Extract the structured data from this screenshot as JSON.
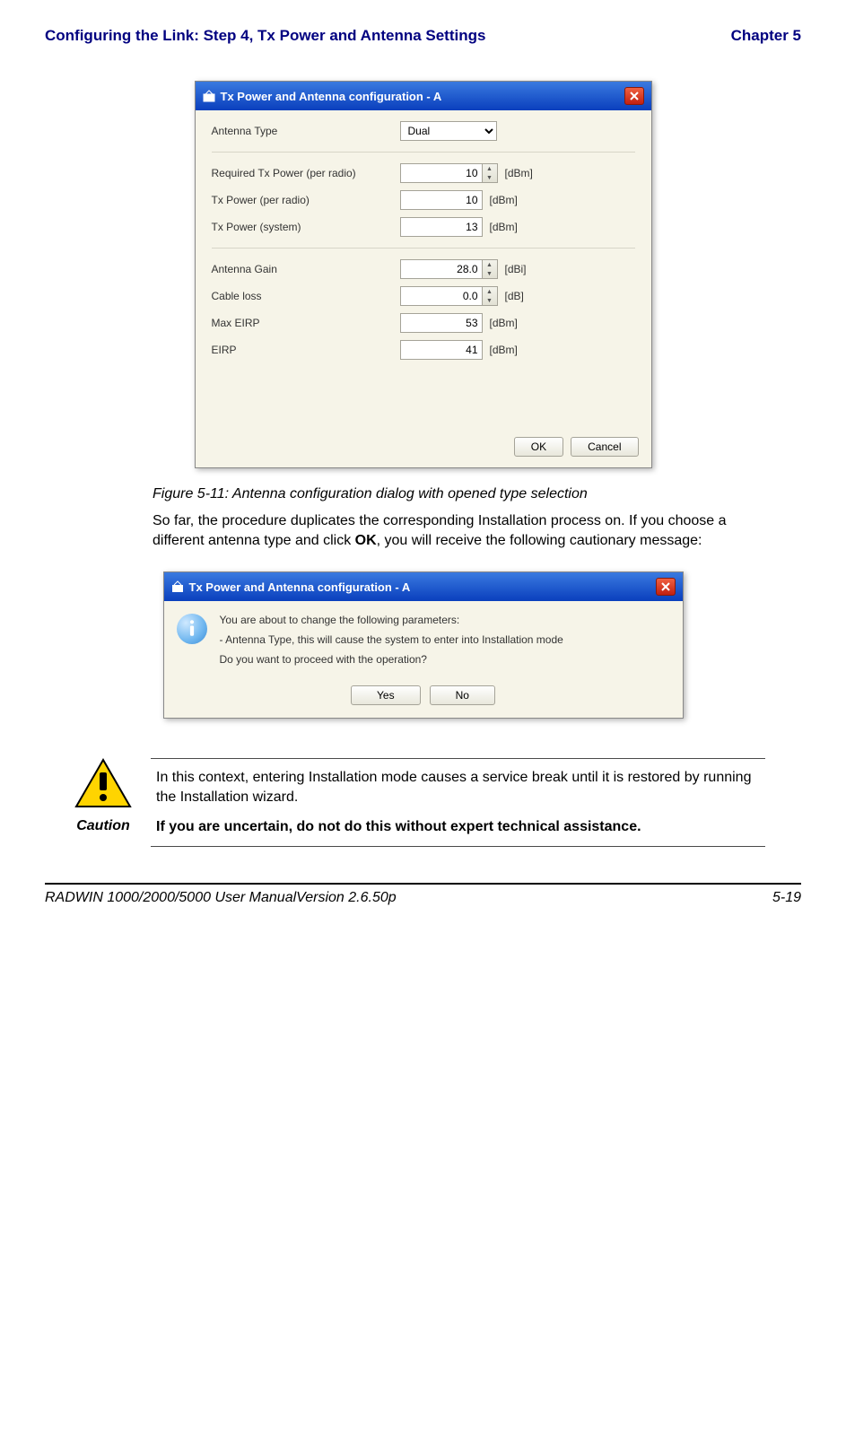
{
  "header": {
    "left": "Configuring the Link: Step 4, Tx Power and Antenna Settings",
    "right": "Chapter 5"
  },
  "dialog1": {
    "title": "Tx Power and Antenna configuration - A",
    "antenna_type_label": "Antenna Type",
    "antenna_type_value": "Dual",
    "rows": [
      {
        "label": "Required Tx Power (per radio)",
        "value": "10",
        "unit": "[dBm]",
        "spinner": true
      },
      {
        "label": "Tx Power (per radio)",
        "value": "10",
        "unit": "[dBm]",
        "spinner": false
      },
      {
        "label": "Tx Power (system)",
        "value": "13",
        "unit": "[dBm]",
        "spinner": false
      }
    ],
    "rows2": [
      {
        "label": "Antenna Gain",
        "value": "28.0",
        "unit": "[dBi]",
        "spinner": true
      },
      {
        "label": "Cable loss",
        "value": "0.0",
        "unit": "[dB]",
        "spinner": true
      },
      {
        "label": "Max EIRP",
        "value": "53",
        "unit": "[dBm]",
        "spinner": false
      },
      {
        "label": "EIRP",
        "value": "41",
        "unit": "[dBm]",
        "spinner": false
      }
    ],
    "ok_label": "OK",
    "cancel_label": "Cancel"
  },
  "figure_caption": "Figure 5-11:  Antenna configuration dialog with opened type selection",
  "paragraph1": "So far, the procedure duplicates the corresponding Installation process on. If you choose a different antenna type and click ",
  "ok_bold": "OK",
  "paragraph1b": ", you will receive the following cautionary message:",
  "dialog2": {
    "title": "Tx Power and Antenna configuration - A",
    "line1": "You are about to change the following parameters:",
    "line2": " - Antenna Type, this will cause the system to enter into Installation mode",
    "line3": "Do you want to proceed with the operation?",
    "yes_label": "Yes",
    "no_label": "No"
  },
  "caution": {
    "para1": "In this context, entering Installation mode causes a service break until it is restored by running the Installation wizard.",
    "para2": "If you are uncertain, do not do this without expert technical assistance.",
    "label": "Caution"
  },
  "footer": {
    "left": "RADWIN 1000/2000/5000 User ManualVersion  2.6.50p",
    "right": "5-19"
  },
  "colors": {
    "header": "#000080"
  }
}
